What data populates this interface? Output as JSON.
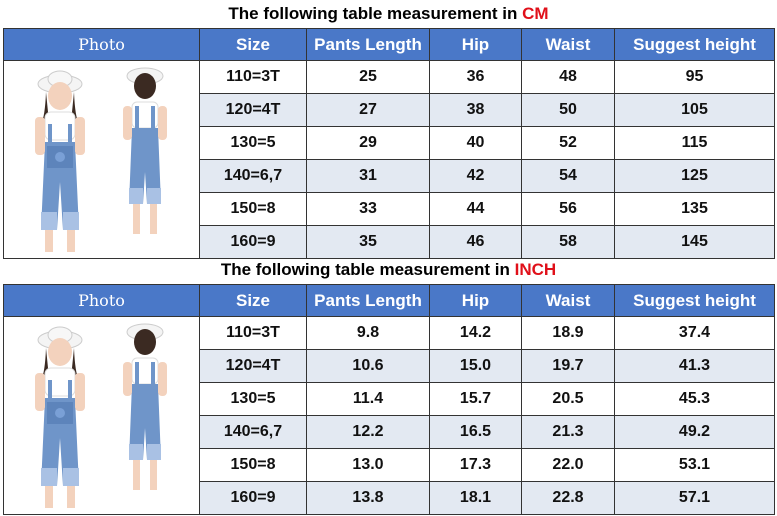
{
  "headers": [
    "Photo",
    "Size",
    "Pants Length",
    "Hip",
    "Waist",
    "Suggest height"
  ],
  "cm": {
    "title_prefix": "The following table measurement in",
    "unit": "CM",
    "rows": [
      [
        "110=3T",
        "25",
        "36",
        "48",
        "95"
      ],
      [
        "120=4T",
        "27",
        "38",
        "50",
        "105"
      ],
      [
        "130=5",
        "29",
        "40",
        "52",
        "115"
      ],
      [
        "140=6,7",
        "31",
        "42",
        "54",
        "125"
      ],
      [
        "150=8",
        "33",
        "44",
        "56",
        "135"
      ],
      [
        "160=9",
        "35",
        "46",
        "58",
        "145"
      ]
    ]
  },
  "inch": {
    "title_prefix": "The following table measurement in",
    "unit": "INCH",
    "rows": [
      [
        "110=3T",
        "9.8",
        "14.2",
        "18.9",
        "37.4"
      ],
      [
        "120=4T",
        "10.6",
        "15.0",
        "19.7",
        "41.3"
      ],
      [
        "130=5",
        "11.4",
        "15.7",
        "20.5",
        "45.3"
      ],
      [
        "140=6,7",
        "12.2",
        "16.5",
        "21.3",
        "49.2"
      ],
      [
        "150=8",
        "13.0",
        "17.3",
        "22.0",
        "53.1"
      ],
      [
        "160=9",
        "13.8",
        "18.1",
        "22.8",
        "57.1"
      ]
    ]
  },
  "colors": {
    "header_bg": "#4a78c8",
    "alt_row_bg": "#e3e9f2",
    "unit_red": "#e0101a",
    "denim": "#6f95c9"
  }
}
